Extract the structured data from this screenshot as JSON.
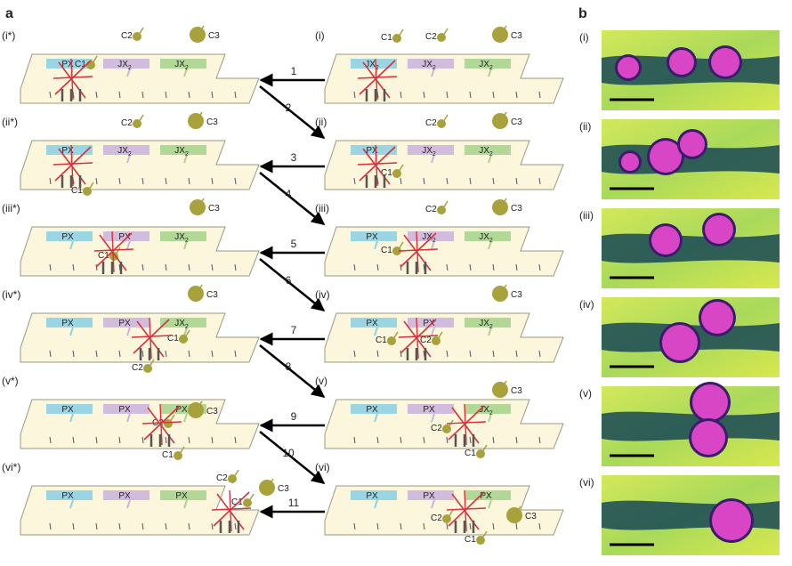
{
  "panel_labels": {
    "a": "a",
    "b": "b"
  },
  "left_rows": [
    {
      "label": "(i*)",
      "boxes": [
        "PX",
        "JX2",
        "JX2"
      ],
      "cargo": [
        "C1",
        "C2",
        "C3"
      ]
    },
    {
      "label": "(ii*)",
      "boxes": [
        "PX",
        "JX2",
        "JX2"
      ],
      "cargo": [
        "C1",
        "C2",
        "C3"
      ]
    },
    {
      "label": "(iii*)",
      "boxes": [
        "PX",
        "PX",
        "JX2"
      ],
      "cargo": [
        "C1",
        "C3"
      ]
    },
    {
      "label": "(iv*)",
      "boxes": [
        "PX",
        "PX",
        "JX2"
      ],
      "cargo": [
        "C1",
        "C2",
        "C3"
      ]
    },
    {
      "label": "(v*)",
      "boxes": [
        "PX",
        "PX",
        "PX"
      ],
      "cargo": [
        "C1",
        "C2",
        "C3"
      ]
    },
    {
      "label": "(vi*)",
      "boxes": [
        "PX",
        "PX",
        "PX"
      ],
      "cargo": [
        "C1",
        "C2",
        "C3"
      ]
    }
  ],
  "right_rows": [
    {
      "label": "(i)",
      "boxes": [
        "JX2",
        "JX2",
        "JX2"
      ],
      "cargo": [
        "C1",
        "C2",
        "C3"
      ]
    },
    {
      "label": "(ii)",
      "boxes": [
        "PX",
        "JX2",
        "JX2"
      ],
      "cargo": [
        "C1",
        "C2",
        "C3"
      ]
    },
    {
      "label": "(iii)",
      "boxes": [
        "PX",
        "JX2",
        "JX2"
      ],
      "cargo": [
        "C1",
        "C2",
        "C3"
      ]
    },
    {
      "label": "(iv)",
      "boxes": [
        "PX",
        "PX",
        "JX2"
      ],
      "cargo": [
        "C1",
        "C2",
        "C3"
      ]
    },
    {
      "label": "(v)",
      "boxes": [
        "PX",
        "PX",
        "JX2"
      ],
      "cargo": [
        "C1",
        "C2",
        "C3"
      ]
    },
    {
      "label": "(vi)",
      "boxes": [
        "PX",
        "PX",
        "PX"
      ],
      "cargo": [
        "C1",
        "C2",
        "C3"
      ]
    }
  ],
  "steps": [
    "1",
    "2",
    "3",
    "4",
    "5",
    "6",
    "7",
    "8",
    "9",
    "10",
    "11"
  ],
  "micrograph_labels": [
    "(i)",
    "(ii)",
    "(iii)",
    "(iv)",
    "(v)",
    "(vi)"
  ],
  "colors": {
    "px": "#8fd2e4",
    "jx_purple": "#cdb6de",
    "jx_green": "#a9d58f",
    "tile": "#fbf6dc",
    "cargo": "#a8a23c",
    "walker": "#d9303b",
    "dot": "#d845c5",
    "track": "#0e3f55"
  }
}
